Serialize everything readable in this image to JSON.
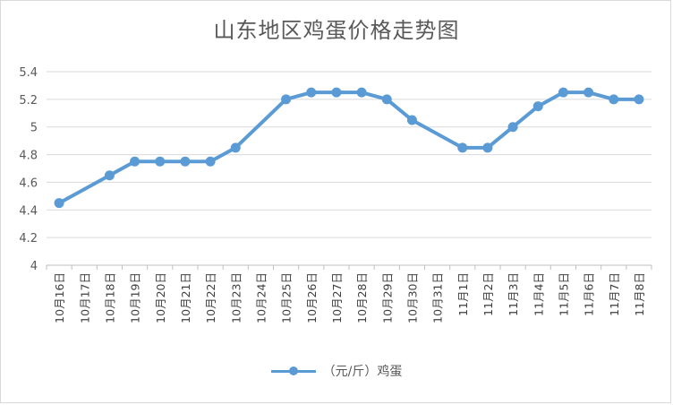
{
  "chart_data": {
    "type": "line",
    "title": "山东地区鸡蛋价格走势图",
    "categories": [
      "10月16日",
      "10月17日",
      "10月18日",
      "10月19日",
      "10月20日",
      "10月21日",
      "10月22日",
      "10月23日",
      "10月24日",
      "10月25日",
      "10月26日",
      "10月27日",
      "10月28日",
      "10月29日",
      "10月30日",
      "10月31日",
      "11月1日",
      "11月2日",
      "11月3日",
      "11月4日",
      "11月5日",
      "11月6日",
      "11月7日",
      "11月8日"
    ],
    "series": [
      {
        "name": "（元/斤）鸡蛋",
        "values": [
          4.45,
          null,
          4.65,
          4.75,
          4.75,
          4.75,
          4.75,
          4.85,
          null,
          5.2,
          5.25,
          5.25,
          5.25,
          5.2,
          5.05,
          null,
          4.85,
          4.85,
          5.0,
          5.15,
          5.25,
          5.25,
          5.2,
          5.2
        ]
      }
    ],
    "ylim": [
      4,
      5.4
    ],
    "yticks": [
      "4",
      "4.2",
      "4.4",
      "4.6",
      "4.8",
      "5",
      "5.2",
      "5.4"
    ],
    "grid": true,
    "legend": "bottom",
    "colors": {
      "series": "#5b9bd5",
      "grid": "#d9d9d9",
      "axis": "#bfbfbf"
    }
  }
}
